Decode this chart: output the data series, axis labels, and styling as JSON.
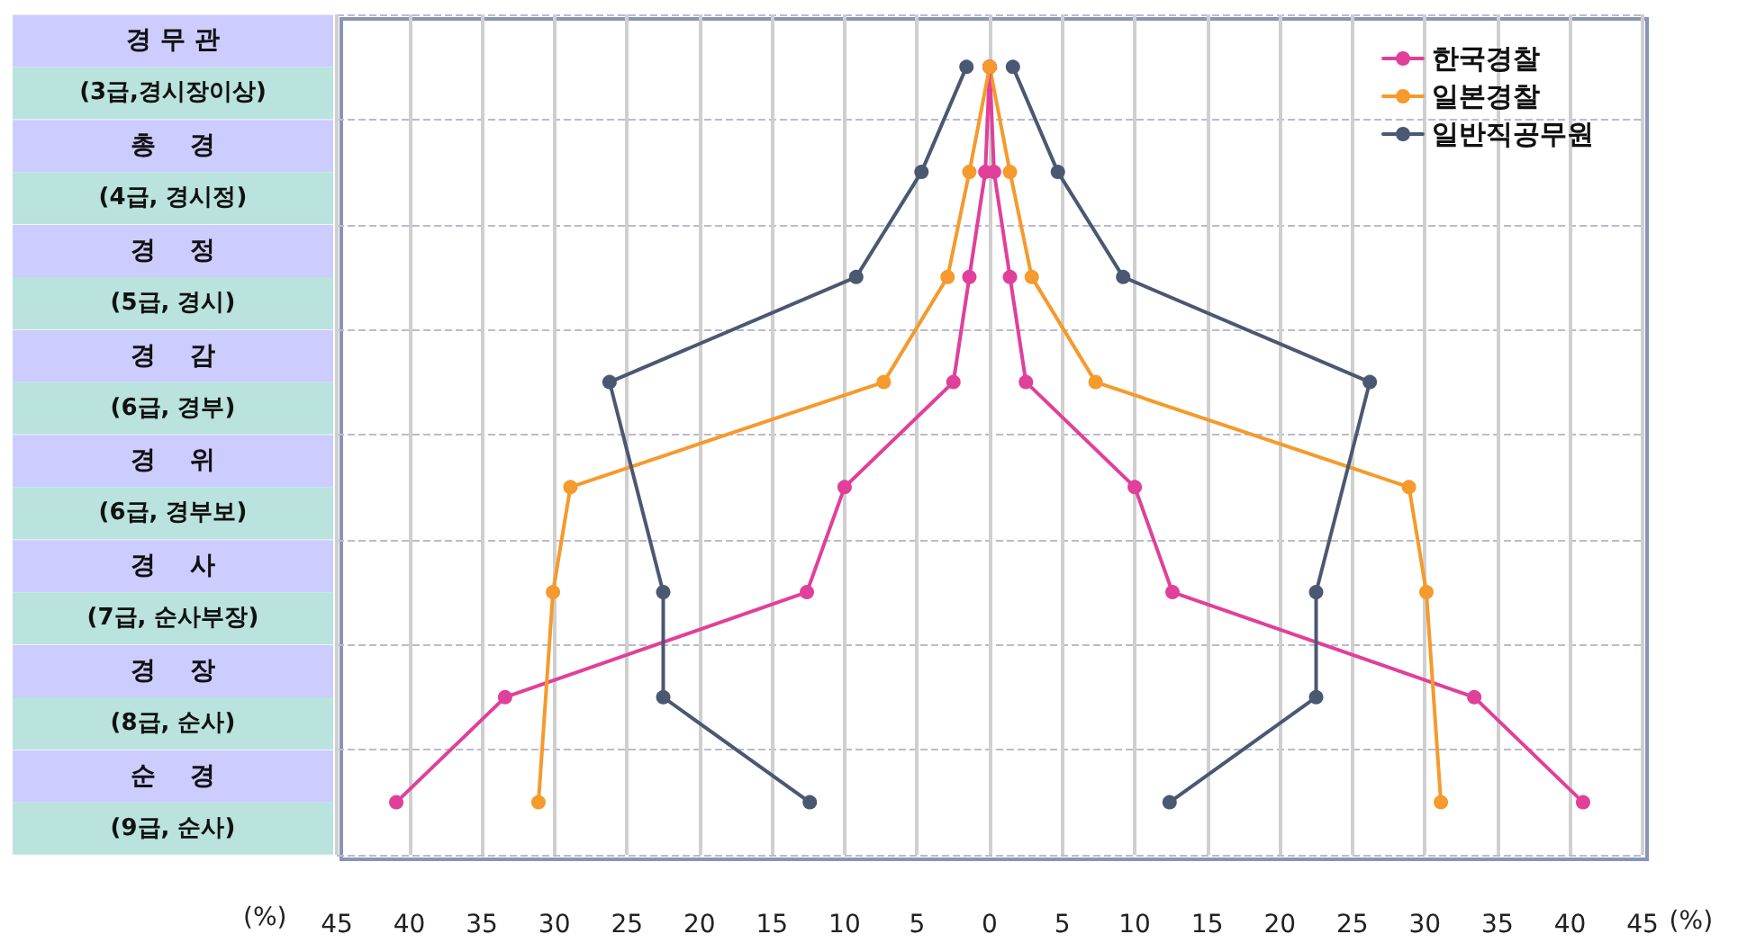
{
  "chart_data": {
    "type": "line",
    "orientation": "horizontal",
    "xlabel": "(%)",
    "categories": [
      "경 무 관\n(3급,경시장이상)",
      "총    경\n(4급, 경시정)",
      "경    정\n(5급, 경시)",
      "경    감\n(6급, 경부)",
      "경    위\n(6급, 경부보)",
      "경    사\n(7급, 순사부장)",
      "경    장\n(8급, 순사)",
      "순    경\n(9급, 순사)"
    ],
    "series": [
      {
        "name": "한국경찰",
        "color": "#e0409a",
        "values": [
          0,
          0.3,
          1.4,
          2.5,
          10,
          12.6,
          33.4,
          40.9
        ]
      },
      {
        "name": "일본경찰",
        "color": "#f59a2c",
        "values": [
          0,
          1.4,
          2.9,
          7.3,
          28.9,
          30.1,
          null,
          31.1
        ]
      },
      {
        "name": "일반직공무원",
        "color": "#4b5872",
        "values": [
          1.6,
          4.7,
          9.2,
          26.2,
          null,
          22.5,
          22.5,
          12.4
        ]
      },
      {
        "color": "#e0409a",
        "values": [
          0,
          -0.3,
          -1.4,
          -2.5,
          -10,
          -12.6,
          -33.4,
          -40.9
        ]
      },
      {
        "color": "#f59a2c",
        "values": [
          0,
          -1.4,
          -2.9,
          -7.3,
          -28.9,
          -30.1,
          null,
          -31.1
        ]
      },
      {
        "color": "#4b5872",
        "values": [
          -1.6,
          -4.7,
          -9.2,
          -26.2,
          null,
          -22.5,
          -22.5,
          -12.4
        ]
      }
    ],
    "xlim": [
      -45,
      45
    ],
    "xticks": [
      {
        "value": -45,
        "label": "45"
      },
      {
        "value": -40,
        "label": "40"
      },
      {
        "value": -35,
        "label": "35"
      },
      {
        "value": -30,
        "label": "30"
      },
      {
        "value": -25,
        "label": "25"
      },
      {
        "value": -20,
        "label": "20"
      },
      {
        "value": -15,
        "label": "15"
      },
      {
        "value": -10,
        "label": "10"
      },
      {
        "value": -5,
        "label": "5"
      },
      0,
      5,
      10,
      15,
      20,
      25,
      30,
      35,
      40,
      45
    ],
    "grid": true,
    "legend": "top right",
    "marker": "circle",
    "line_style": "solid"
  }
}
